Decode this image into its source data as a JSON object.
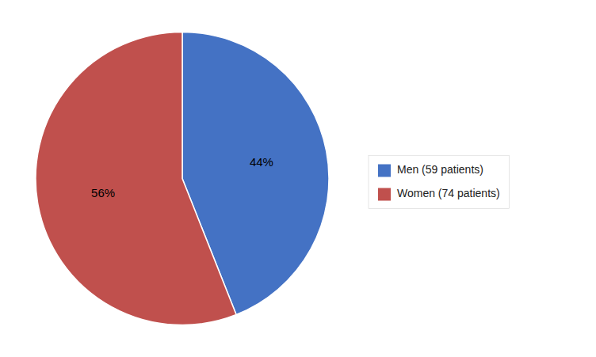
{
  "chart_data": {
    "type": "pie",
    "categories": [
      "Men (59 patients)",
      "Women (74 patients)"
    ],
    "values": [
      44,
      56
    ],
    "value_labels": [
      "44%",
      "56%"
    ],
    "colors": [
      "#4472C4",
      "#C0504D"
    ],
    "data_labels": true,
    "legend": "right"
  }
}
